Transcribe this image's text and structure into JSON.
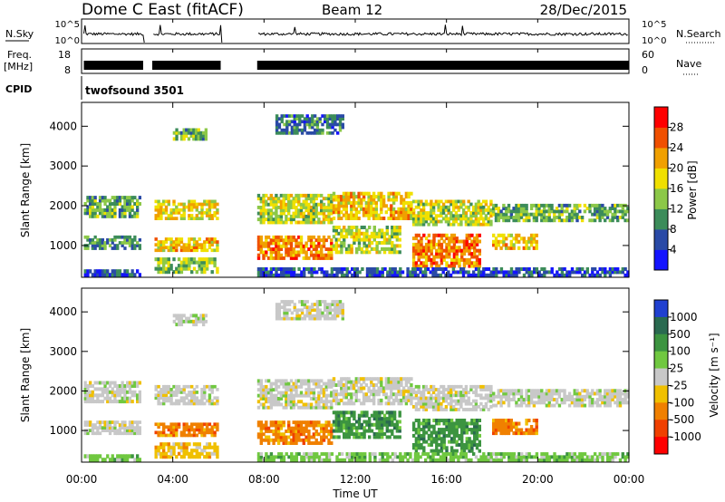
{
  "header": {
    "station": "Dome C East (fitACF)",
    "beam": "Beam 12",
    "date": "28/Dec/2015"
  },
  "strips": {
    "nsky_label": "N.Sky",
    "nsky_ticks": [
      "10^5",
      "10^0"
    ],
    "nsearch_label": "N.Search",
    "nsearch_ticks": [
      "10^5",
      "10^0"
    ],
    "freq_label": "Freq.",
    "freq_unit": "[MHz]",
    "freq_ticks": [
      "18",
      "8"
    ],
    "nave_label": "Nave",
    "nave_ticks": [
      "60",
      "0"
    ],
    "cpid_label": "CPID",
    "cpid_value": "twofsound 3501",
    "data_gaps_hours": [
      [
        2.7,
        3.1
      ],
      [
        6.1,
        7.7
      ]
    ]
  },
  "x_axis": {
    "label": "Time UT",
    "ticks": [
      "00:00",
      "04:00",
      "08:00",
      "12:00",
      "16:00",
      "20:00",
      "00:00"
    ],
    "range_hours": [
      0,
      24
    ]
  },
  "chart_data": [
    {
      "type": "heatmap",
      "name": "power",
      "ylabel": "Slant Range [km]",
      "yticks": [
        "1000",
        "2000",
        "3000",
        "4000"
      ],
      "ylim": [
        200,
        4600
      ],
      "colorbar_label": "Power [dB]",
      "colorbar_ticks": [
        "4",
        "8",
        "12",
        "16",
        "20",
        "24",
        "28"
      ],
      "colorbar_range": [
        0,
        32
      ],
      "colors": [
        "#1414ff",
        "#2a4aa6",
        "#3c8c5a",
        "#8cc848",
        "#f0e000",
        "#f0a000",
        "#f05000",
        "#ff0000"
      ],
      "bands": [
        {
          "t": [
            0.1,
            2.6
          ],
          "r": [
            1700,
            2250
          ],
          "v": 12
        },
        {
          "t": [
            0.1,
            2.6
          ],
          "r": [
            900,
            1250
          ],
          "v": 10
        },
        {
          "t": [
            0.1,
            2.6
          ],
          "r": [
            220,
            400
          ],
          "v": 6
        },
        {
          "t": [
            3.2,
            6.0
          ],
          "r": [
            1650,
            2150
          ],
          "v": 18
        },
        {
          "t": [
            3.2,
            6.0
          ],
          "r": [
            850,
            1200
          ],
          "v": 20
        },
        {
          "t": [
            3.2,
            6.0
          ],
          "r": [
            300,
            700
          ],
          "v": 14
        },
        {
          "t": [
            4.0,
            5.5
          ],
          "r": [
            3650,
            3950
          ],
          "v": 12
        },
        {
          "t": [
            7.7,
            11.0
          ],
          "r": [
            1550,
            2300
          ],
          "v": 16
        },
        {
          "t": [
            7.7,
            11.0
          ],
          "r": [
            650,
            1250
          ],
          "v": 24
        },
        {
          "t": [
            8.5,
            11.5
          ],
          "r": [
            3800,
            4300
          ],
          "v": 8
        },
        {
          "t": [
            11.0,
            14.5
          ],
          "r": [
            1650,
            2350
          ],
          "v": 20
        },
        {
          "t": [
            11.0,
            14.0
          ],
          "r": [
            800,
            1500
          ],
          "v": 16
        },
        {
          "t": [
            14.5,
            18.0
          ],
          "r": [
            1500,
            2150
          ],
          "v": 16
        },
        {
          "t": [
            14.5,
            17.5
          ],
          "r": [
            450,
            1300
          ],
          "v": 24
        },
        {
          "t": [
            18.0,
            20.0
          ],
          "r": [
            900,
            1300
          ],
          "v": 20
        },
        {
          "t": [
            18.0,
            24.0
          ],
          "r": [
            1600,
            2050
          ],
          "v": 12
        },
        {
          "t": [
            7.7,
            24.0
          ],
          "r": [
            220,
            450
          ],
          "v": 6
        }
      ]
    },
    {
      "type": "heatmap",
      "name": "velocity",
      "ylabel": "Slant Range [km]",
      "yticks": [
        "1000",
        "2000",
        "3000",
        "4000"
      ],
      "ylim": [
        200,
        4600
      ],
      "colorbar_label": "Velocity [m s⁻¹]",
      "colorbar_ticks": [
        "1000",
        "500",
        "100",
        "25",
        "-25",
        "-100",
        "-500",
        "-1000"
      ],
      "colors": [
        "#2040d0",
        "#2a6a50",
        "#3c9440",
        "#70c840",
        "#c8c8c8",
        "#f0c000",
        "#f08000",
        "#f04000",
        "#ff0000"
      ],
      "bands": [
        {
          "t": [
            0.1,
            2.6
          ],
          "r": [
            1700,
            2250
          ],
          "c": 4
        },
        {
          "t": [
            0.1,
            2.6
          ],
          "r": [
            900,
            1250
          ],
          "c": 4
        },
        {
          "t": [
            0.1,
            2.6
          ],
          "r": [
            220,
            400
          ],
          "c": 3
        },
        {
          "t": [
            3.2,
            6.0
          ],
          "r": [
            1650,
            2150
          ],
          "c": 4
        },
        {
          "t": [
            3.2,
            6.0
          ],
          "r": [
            850,
            1200
          ],
          "c": 6
        },
        {
          "t": [
            3.2,
            6.0
          ],
          "r": [
            300,
            700
          ],
          "c": 5
        },
        {
          "t": [
            4.0,
            5.5
          ],
          "r": [
            3650,
            3950
          ],
          "c": 4
        },
        {
          "t": [
            7.7,
            11.0
          ],
          "r": [
            1550,
            2300
          ],
          "c": 4
        },
        {
          "t": [
            7.7,
            11.0
          ],
          "r": [
            650,
            1250
          ],
          "c": 6
        },
        {
          "t": [
            8.5,
            11.5
          ],
          "r": [
            3800,
            4300
          ],
          "c": 4
        },
        {
          "t": [
            11.0,
            14.5
          ],
          "r": [
            1650,
            2350
          ],
          "c": 4
        },
        {
          "t": [
            11.0,
            14.0
          ],
          "r": [
            800,
            1500
          ],
          "c": 2
        },
        {
          "t": [
            14.5,
            18.0
          ],
          "r": [
            1500,
            2150
          ],
          "c": 4
        },
        {
          "t": [
            14.5,
            17.5
          ],
          "r": [
            450,
            1300
          ],
          "c": 2
        },
        {
          "t": [
            18.0,
            20.0
          ],
          "r": [
            900,
            1300
          ],
          "c": 6
        },
        {
          "t": [
            18.0,
            24.0
          ],
          "r": [
            1600,
            2050
          ],
          "c": 4
        },
        {
          "t": [
            7.7,
            24.0
          ],
          "r": [
            220,
            450
          ],
          "c": 3
        }
      ]
    }
  ]
}
